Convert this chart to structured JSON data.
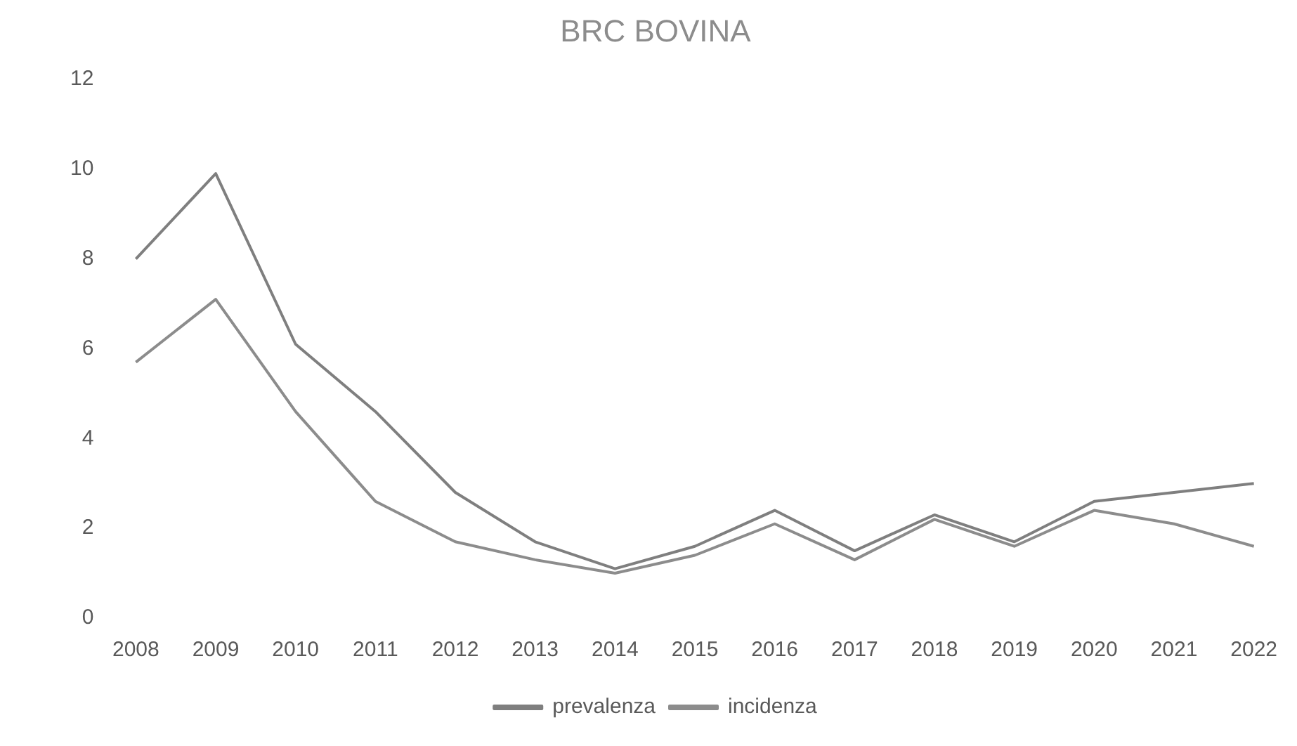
{
  "chart_data": {
    "type": "line",
    "title": "BRC BOVINA",
    "categories": [
      "2008",
      "2009",
      "2010",
      "2011",
      "2012",
      "2013",
      "2014",
      "2015",
      "2016",
      "2017",
      "2018",
      "2019",
      "2020",
      "2021",
      "2022"
    ],
    "series": [
      {
        "name": "prevalenza",
        "color": "#7f7f7f",
        "values": [
          8.0,
          9.9,
          6.1,
          4.6,
          2.8,
          1.7,
          1.1,
          1.6,
          2.4,
          1.5,
          2.3,
          1.7,
          2.6,
          2.8,
          3.0
        ]
      },
      {
        "name": "incidenza",
        "color": "#8c8c8c",
        "values": [
          5.7,
          7.1,
          4.6,
          2.6,
          1.7,
          1.3,
          1.0,
          1.4,
          2.1,
          1.3,
          2.2,
          1.6,
          2.4,
          2.1,
          1.6
        ]
      }
    ],
    "ylim": [
      0,
      12
    ],
    "yticks": [
      0,
      2,
      4,
      6,
      8,
      10,
      12
    ],
    "grid": false,
    "legend": "bottom",
    "marker": "none",
    "line_style": "solid"
  }
}
